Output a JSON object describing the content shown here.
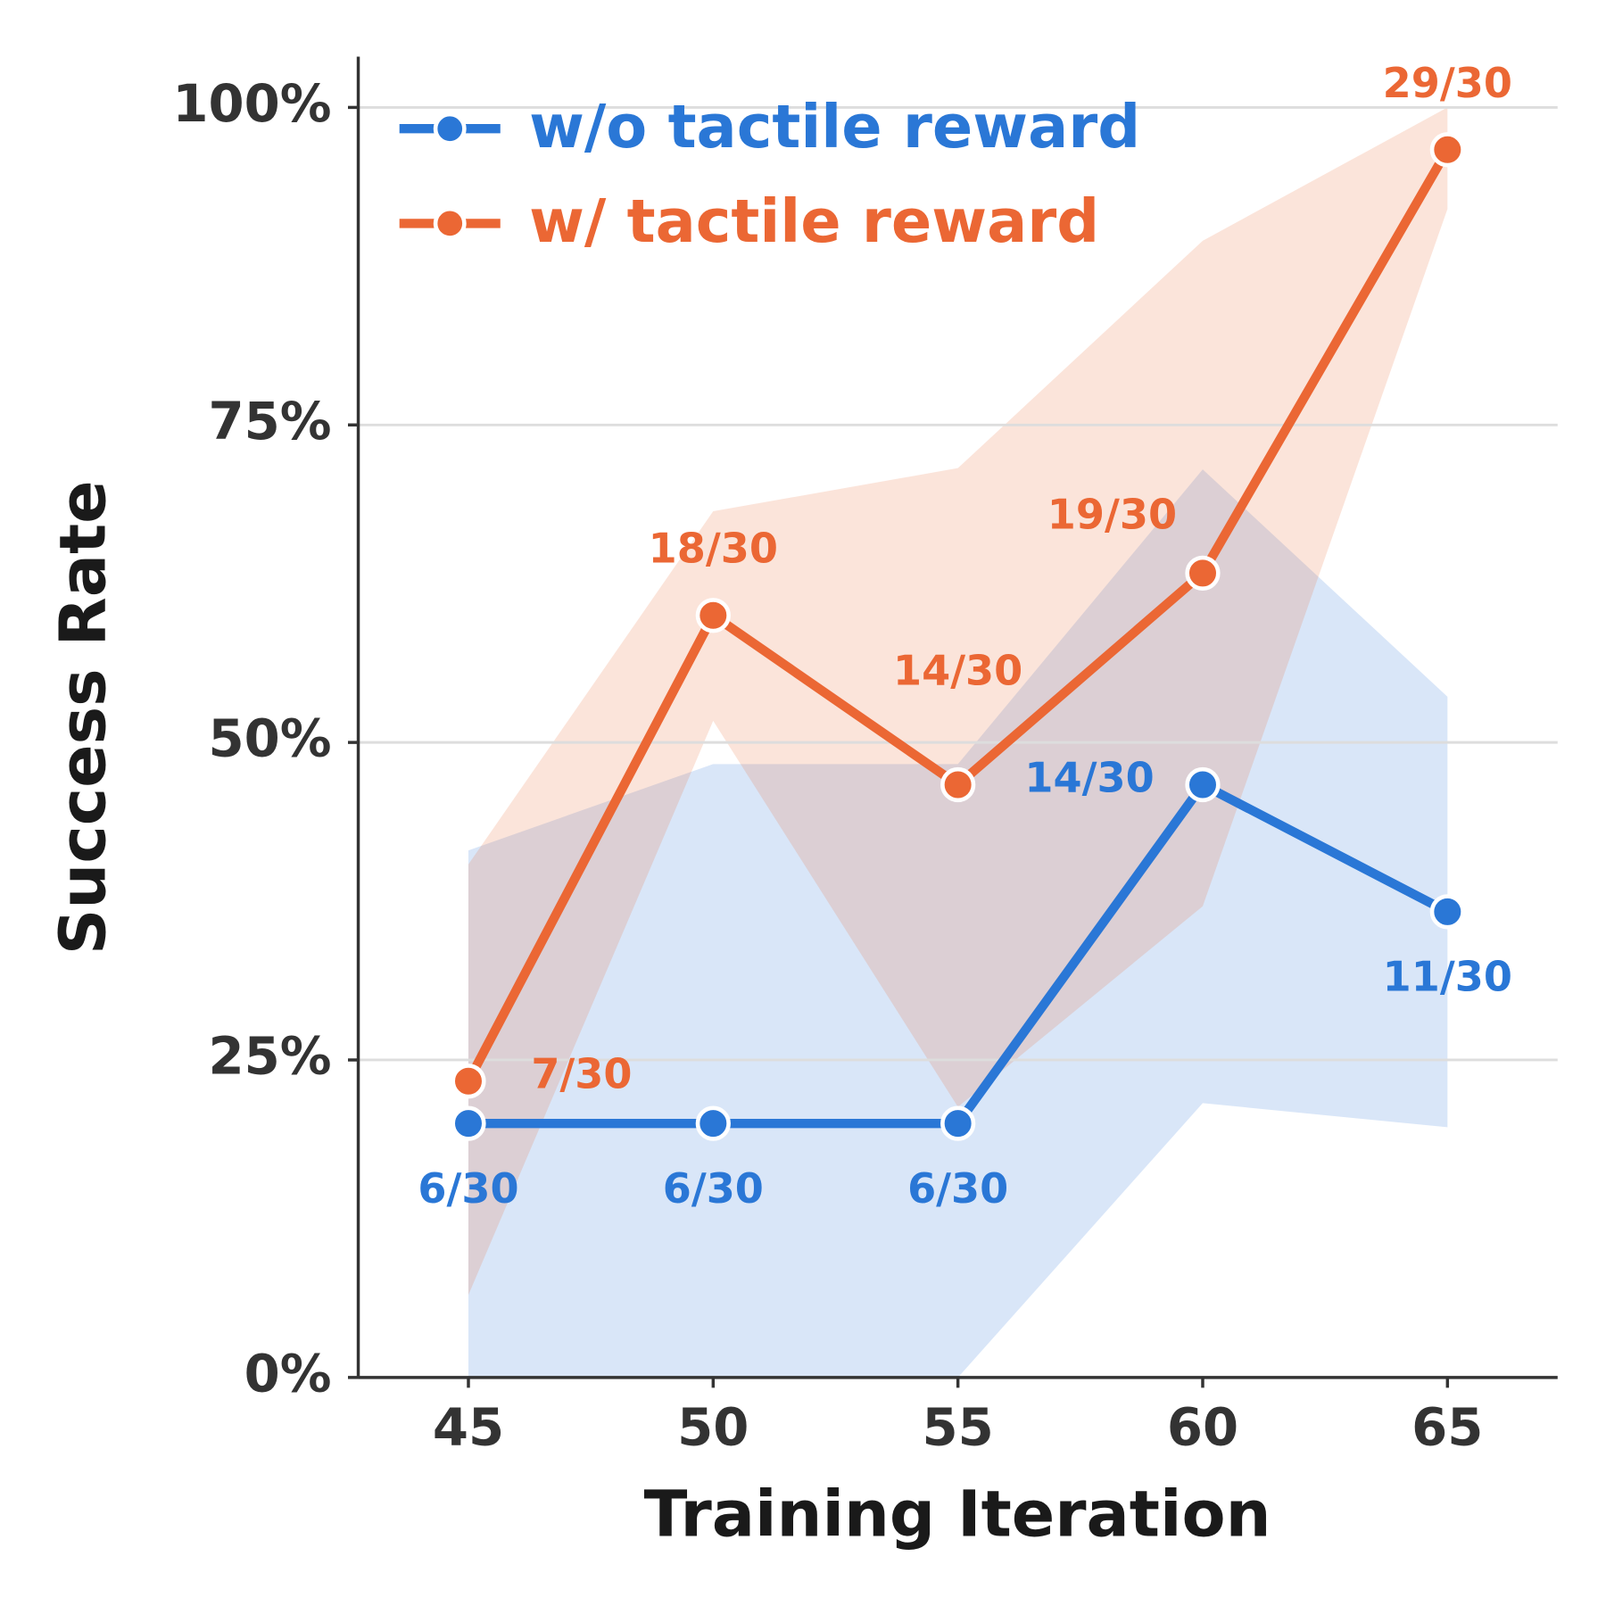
{
  "chart_data": {
    "type": "line",
    "x_label": "Training Iteration",
    "y_label": "Success Rate",
    "x": [
      45,
      50,
      55,
      60,
      65
    ],
    "xlim": [
      42.75,
      67.25
    ],
    "xticks": [
      45,
      50,
      55,
      60,
      65
    ],
    "ylim": [
      0,
      104
    ],
    "yticks": [
      {
        "value": 0,
        "label": "0%"
      },
      {
        "value": 25,
        "label": "25%"
      },
      {
        "value": 50,
        "label": "50%"
      },
      {
        "value": 75,
        "label": "75%"
      },
      {
        "value": 100,
        "label": "100%"
      }
    ],
    "grid": true,
    "legend": "upper left",
    "series": [
      {
        "name": "w/o tactile reward",
        "color": "#2a77d6",
        "values": [
          20,
          20,
          20,
          46.67,
          36.67
        ],
        "value_labels": [
          "6/30",
          "6/30",
          "6/30",
          "14/30",
          "11/30"
        ],
        "lower": [
          0,
          0,
          0,
          21.6,
          19.7
        ],
        "upper": [
          41.5,
          48.3,
          48.3,
          71.5,
          53.6
        ]
      },
      {
        "name": "w/ tactile reward",
        "color": "#eb6734",
        "values": [
          23.33,
          60,
          46.67,
          63.33,
          96.67
        ],
        "value_labels": [
          "7/30",
          "18/30",
          "14/30",
          "19/30",
          "29/30"
        ],
        "lower": [
          6.5,
          51.7,
          21.3,
          37.1,
          92
        ],
        "upper": [
          40.4,
          68.2,
          71.6,
          89.5,
          100
        ]
      }
    ]
  }
}
